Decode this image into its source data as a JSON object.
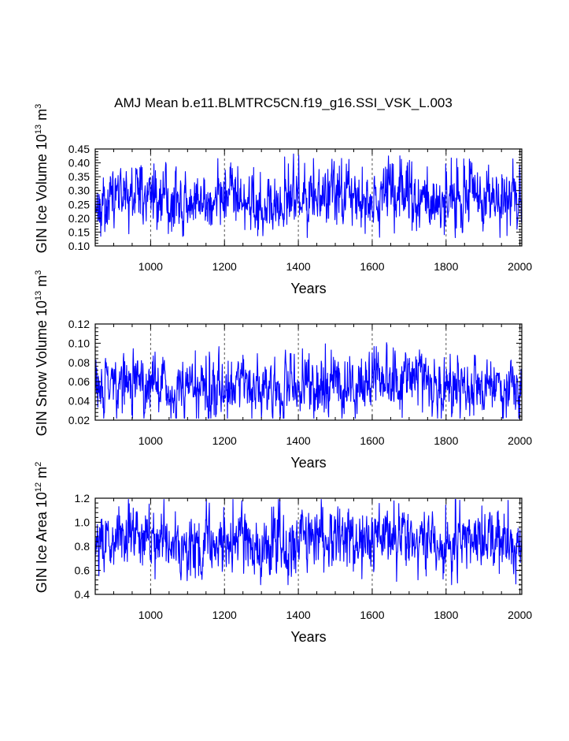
{
  "title": "AMJ Mean b.e11.BLMTRC5CN.f19_g16.SSI_VSK_L.003",
  "chart_data": [
    {
      "type": "line",
      "ylabel": "GIN Ice Volume",
      "ylabel_exp": "10",
      "ylabel_exp_sup": "13",
      "ylabel_unit": "m",
      "ylabel_unit_sup": "3",
      "xlabel": "Years",
      "xlim": [
        850,
        2005
      ],
      "ylim": [
        0.1,
        0.45
      ],
      "yticks": [
        "0.10",
        "0.15",
        "0.20",
        "0.25",
        "0.30",
        "0.35",
        "0.40",
        "0.45"
      ],
      "xticks": [
        "1000",
        "1200",
        "1400",
        "1600",
        "1800",
        "2000"
      ],
      "series_color": "#0000ff",
      "series": {
        "name": "GIN Ice Volume",
        "start_year": 850,
        "end_year": 2005,
        "mean": 0.27,
        "spread": 0.05,
        "min": 0.12,
        "max": 0.45,
        "seed": 17
      }
    },
    {
      "type": "line",
      "ylabel": "GIN Snow Volume",
      "ylabel_exp": "10",
      "ylabel_exp_sup": "13",
      "ylabel_unit": "m",
      "ylabel_unit_sup": "3",
      "xlabel": "Years",
      "xlim": [
        850,
        2005
      ],
      "ylim": [
        0.02,
        0.12
      ],
      "yticks": [
        "0.02",
        "0.04",
        "0.06",
        "0.08",
        "0.10",
        "0.12"
      ],
      "xticks": [
        "1000",
        "1200",
        "1400",
        "1600",
        "1800",
        "2000"
      ],
      "series_color": "#0000ff",
      "series": {
        "name": "GIN Snow Volume",
        "start_year": 850,
        "end_year": 2005,
        "mean": 0.055,
        "spread": 0.014,
        "min": 0.022,
        "max": 0.101,
        "seed": 29
      }
    },
    {
      "type": "line",
      "ylabel": "GIN Ice Area",
      "ylabel_exp": "10",
      "ylabel_exp_sup": "12",
      "ylabel_unit": "m",
      "ylabel_unit_sup": "2",
      "xlabel": "Years",
      "xlim": [
        850,
        2005
      ],
      "ylim": [
        0.4,
        1.2
      ],
      "yticks": [
        "0.4",
        "0.6",
        "0.8",
        "1.0",
        "1.2"
      ],
      "xticks": [
        "1000",
        "1200",
        "1400",
        "1600",
        "1800",
        "2000"
      ],
      "series_color": "#0000ff",
      "series": {
        "name": "GIN Ice Area",
        "start_year": 850,
        "end_year": 2005,
        "mean": 0.84,
        "spread": 0.12,
        "min": 0.48,
        "max": 1.19,
        "seed": 43
      }
    }
  ]
}
